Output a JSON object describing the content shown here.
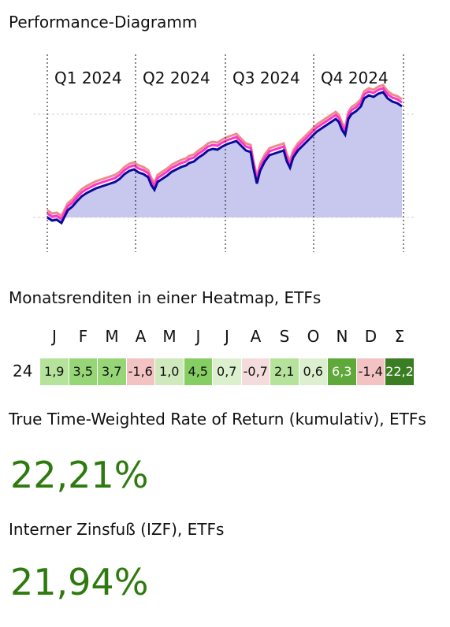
{
  "performance_chart": {
    "title": "Performance-Diagramm",
    "quarters": [
      "Q1 2024",
      "Q2 2024",
      "Q3 2024",
      "Q4 2024"
    ],
    "colors": {
      "main_line": "#0a0a9a",
      "benchmark_a": "#ff33cc",
      "benchmark_b": "#f08a8a",
      "area_fill": "#c8c8ee"
    }
  },
  "heatmap": {
    "title": "Monatsrenditen in einer Heatmap, ETFs",
    "year_label": "24",
    "months": [
      {
        "label": "J",
        "value": "1,9",
        "color": "#b6e39b",
        "text_color": "#111"
      },
      {
        "label": "F",
        "value": "3,5",
        "color": "#97d677",
        "text_color": "#111"
      },
      {
        "label": "M",
        "value": "3,7",
        "color": "#97d677",
        "text_color": "#111"
      },
      {
        "label": "A",
        "value": "-1,6",
        "color": "#f3c2c2",
        "text_color": "#111"
      },
      {
        "label": "M",
        "value": "1,0",
        "color": "#cfe9bd",
        "text_color": "#111"
      },
      {
        "label": "J",
        "value": "4,5",
        "color": "#86cd62",
        "text_color": "#111"
      },
      {
        "label": "J",
        "value": "0,7",
        "color": "#dcefcf",
        "text_color": "#111"
      },
      {
        "label": "A",
        "value": "-0,7",
        "color": "#f5dcdc",
        "text_color": "#111"
      },
      {
        "label": "S",
        "value": "2,1",
        "color": "#b6e39b",
        "text_color": "#111"
      },
      {
        "label": "O",
        "value": "0,6",
        "color": "#dcefcf",
        "text_color": "#111"
      },
      {
        "label": "N",
        "value": "6,3",
        "color": "#5fa83a",
        "text_color": "#ffffff"
      },
      {
        "label": "D",
        "value": "-1,4",
        "color": "#f3c2c2",
        "text_color": "#111"
      },
      {
        "label": "Σ",
        "value": "22,2",
        "color": "#3a7d22",
        "text_color": "#ffffff"
      }
    ]
  },
  "ttwror": {
    "title": "True Time-Weighted Rate of Return (kumulativ), ETFs",
    "value": "22,21%"
  },
  "irr": {
    "title": "Interner Zinsfuß (IZF), ETFs",
    "value": "21,94%"
  }
}
